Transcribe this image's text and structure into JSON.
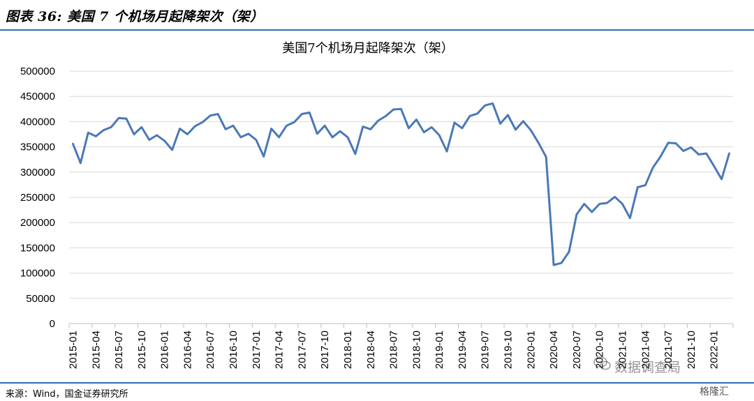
{
  "figure": {
    "heading": "图表 36: 美国 7 个机场月起降架次（架）",
    "source": "来源：Wind，国金证券研究所",
    "watermark": "数据调查局",
    "badge": "格隆汇"
  },
  "colors": {
    "line": "#4a78b8",
    "rule": "#2f6fb0",
    "grid": "#d9d9d9"
  },
  "chart_data": {
    "type": "line",
    "title": "美国7个机场月起降架次（架）",
    "xlabel": "",
    "ylabel": "",
    "ylim": [
      0,
      500000
    ],
    "yticks": [
      0,
      50000,
      100000,
      150000,
      200000,
      250000,
      300000,
      350000,
      400000,
      450000,
      500000
    ],
    "grid": true,
    "x_tick_labels": [
      "2015-01",
      "2015-04",
      "2015-07",
      "2015-10",
      "2016-01",
      "2016-04",
      "2016-07",
      "2016-10",
      "2017-01",
      "2017-04",
      "2017-07",
      "2017-10",
      "2018-01",
      "2018-04",
      "2018-07",
      "2018-10",
      "2019-01",
      "2019-04",
      "2019-07",
      "2019-10",
      "2020-01",
      "2020-04",
      "2020-07",
      "2020-10",
      "2021-01",
      "2021-04",
      "2021-07",
      "2021-10",
      "2022-01"
    ],
    "x_start": "2015-01",
    "series": [
      {
        "values": [
          356000,
          318000,
          378000,
          371000,
          383000,
          389000,
          407000,
          406000,
          375000,
          389000,
          364000,
          373000,
          362000,
          344000,
          386000,
          375000,
          391000,
          399000,
          412000,
          415000,
          385000,
          392000,
          369000,
          376000,
          364000,
          331000,
          386000,
          369000,
          392000,
          399000,
          415000,
          418000,
          376000,
          392000,
          369000,
          381000,
          369000,
          336000,
          390000,
          385000,
          402000,
          411000,
          424000,
          425000,
          387000,
          404000,
          379000,
          389000,
          373000,
          341000,
          398000,
          387000,
          411000,
          416000,
          432000,
          436000,
          396000,
          413000,
          384000,
          401000,
          383000,
          358000,
          330000,
          116000,
          120000,
          142000,
          216000,
          237000,
          221000,
          237000,
          239000,
          251000,
          237000,
          209000,
          270000,
          274000,
          309000,
          331000,
          358000,
          357000,
          342000,
          349000,
          335000,
          337000,
          312000,
          286000,
          337000
        ]
      }
    ]
  }
}
